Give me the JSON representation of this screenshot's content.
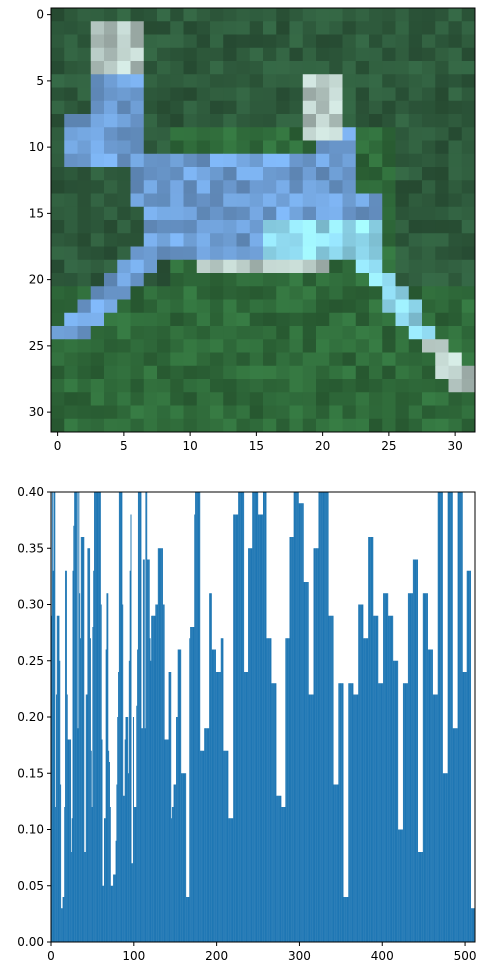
{
  "chart_data": [
    {
      "type": "heatmap",
      "description_kind": "image",
      "xlim": [
        -0.5,
        31.5
      ],
      "ylim": [
        31.5,
        -0.5
      ],
      "xticks": [
        0,
        5,
        10,
        15,
        20,
        25,
        30
      ],
      "yticks": [
        0,
        5,
        10,
        15,
        20,
        25,
        30
      ],
      "grid": false,
      "colors": {
        "background": "#2e5a3c",
        "field": "#2f6a3a",
        "subject": "#6f9fd6",
        "subject_light": "#8fd8ee",
        "subject_pale": "#b7c9c4"
      }
    },
    {
      "type": "bar",
      "xlim": [
        0,
        512
      ],
      "ylim": [
        0,
        0.4
      ],
      "xticks": [
        0,
        100,
        200,
        300,
        400,
        500
      ],
      "yticks": [
        0.0,
        0.05,
        0.1,
        0.15,
        0.2,
        0.25,
        0.3,
        0.35,
        0.4
      ],
      "ytick_labels": [
        "0.00",
        "0.05",
        "0.10",
        "0.15",
        "0.20",
        "0.25",
        "0.30",
        "0.35",
        "0.40"
      ],
      "grid": false,
      "color": "#1f77b4",
      "bar_width": 1,
      "values": [
        0.29,
        0.4,
        0.33,
        0.4,
        0.4,
        0.12,
        0.22,
        0.29,
        0.29,
        0.29,
        0.25,
        0.14,
        0.03,
        0.03,
        0.04,
        0.04,
        0.12,
        0.33,
        0.33,
        0.22,
        0.18,
        0.18,
        0.18,
        0.18,
        0.08,
        0.11,
        0.33,
        0.37,
        0.4,
        0.4,
        0.4,
        0.4,
        0.19,
        0.4,
        0.31,
        0.27,
        0.36,
        0.36,
        0.36,
        0.36,
        0.08,
        0.08,
        0.22,
        0.22,
        0.35,
        0.35,
        0.35,
        0.27,
        0.17,
        0.12,
        0.28,
        0.33,
        0.4,
        0.4,
        0.4,
        0.4,
        0.4,
        0.4,
        0.4,
        0.4,
        0.3,
        0.18,
        0.05,
        0.05,
        0.11,
        0.11,
        0.26,
        0.31,
        0.31,
        0.17,
        0.16,
        0.12,
        0.05,
        0.05,
        0.05,
        0.06,
        0.06,
        0.06,
        0.09,
        0.14,
        0.2,
        0.24,
        0.4,
        0.4,
        0.4,
        0.4,
        0.3,
        0.13,
        0.13,
        0.18,
        0.2,
        0.2,
        0.2,
        0.15,
        0.25,
        0.33,
        0.38,
        0.07,
        0.07,
        0.2,
        0.12,
        0.12,
        0.12,
        0.21,
        0.26,
        0.4,
        0.4,
        0.4,
        0.4,
        0.19,
        0.19,
        0.34,
        0.34,
        0.19,
        0.4,
        0.4,
        0.34,
        0.34,
        0.34,
        0.27,
        0.25,
        0.29,
        0.29,
        0.29,
        0.29,
        0.29,
        0.3,
        0.3,
        0.3,
        0.35,
        0.35,
        0.35,
        0.35,
        0.35,
        0.35,
        0.3,
        0.3,
        0.18,
        0.18,
        0.18,
        0.18,
        0.18,
        0.24,
        0.24,
        0.24,
        0.11,
        0.12,
        0.12,
        0.14,
        0.14,
        0.14,
        0.2,
        0.2,
        0.26,
        0.26,
        0.26,
        0.26,
        0.15,
        0.15,
        0.15,
        0.15,
        0.15,
        0.15,
        0.04,
        0.04,
        0.04,
        0.04,
        0.27,
        0.28,
        0.28,
        0.28,
        0.28,
        0.28,
        0.38,
        0.4,
        0.4,
        0.4,
        0.4,
        0.4,
        0.4,
        0.17,
        0.17,
        0.17,
        0.17,
        0.17,
        0.19,
        0.19,
        0.19,
        0.19,
        0.19,
        0.19,
        0.31,
        0.31,
        0.31,
        0.26,
        0.26,
        0.26,
        0.26,
        0.26,
        0.24,
        0.24,
        0.24,
        0.24,
        0.24,
        0.24,
        0.27,
        0.27,
        0.27,
        0.17,
        0.17,
        0.17,
        0.17,
        0.17,
        0.17,
        0.11,
        0.11,
        0.11,
        0.11,
        0.11,
        0.11,
        0.38,
        0.38,
        0.38,
        0.38,
        0.38,
        0.38,
        0.4,
        0.4,
        0.4,
        0.4,
        0.4,
        0.4,
        0.4,
        0.24,
        0.24,
        0.24,
        0.24,
        0.24,
        0.35,
        0.35,
        0.35,
        0.35,
        0.35,
        0.4,
        0.4,
        0.4,
        0.4,
        0.4,
        0.4,
        0.4,
        0.38,
        0.38,
        0.38,
        0.38,
        0.38,
        0.38,
        0.4,
        0.4,
        0.4,
        0.4,
        0.27,
        0.27,
        0.27,
        0.27,
        0.27,
        0.27,
        0.23,
        0.23,
        0.23,
        0.23,
        0.23,
        0.23,
        0.13,
        0.13,
        0.13,
        0.13,
        0.13,
        0.13,
        0.12,
        0.12,
        0.12,
        0.12,
        0.12,
        0.27,
        0.27,
        0.27,
        0.27,
        0.27,
        0.36,
        0.36,
        0.36,
        0.36,
        0.36,
        0.4,
        0.4,
        0.4,
        0.4,
        0.4,
        0.4,
        0.39,
        0.39,
        0.39,
        0.39,
        0.39,
        0.39,
        0.32,
        0.32,
        0.32,
        0.32,
        0.32,
        0.32,
        0.22,
        0.22,
        0.22,
        0.22,
        0.22,
        0.22,
        0.35,
        0.35,
        0.35,
        0.35,
        0.35,
        0.35,
        0.4,
        0.4,
        0.4,
        0.4,
        0.4,
        0.4,
        0.4,
        0.4,
        0.4,
        0.4,
        0.4,
        0.4,
        0.29,
        0.29,
        0.29,
        0.29,
        0.29,
        0.29,
        0.14,
        0.14,
        0.14,
        0.14,
        0.14,
        0.14,
        0.23,
        0.23,
        0.23,
        0.23,
        0.23,
        0.23,
        0.04,
        0.04,
        0.04,
        0.04,
        0.04,
        0.04,
        0.23,
        0.23,
        0.23,
        0.23,
        0.23,
        0.23,
        0.22,
        0.22,
        0.22,
        0.22,
        0.22,
        0.22,
        0.3,
        0.3,
        0.3,
        0.3,
        0.3,
        0.3,
        0.27,
        0.27,
        0.27,
        0.27,
        0.27,
        0.27,
        0.36,
        0.36,
        0.36,
        0.36,
        0.36,
        0.36,
        0.29,
        0.29,
        0.29,
        0.29,
        0.29,
        0.29,
        0.23,
        0.23,
        0.23,
        0.23,
        0.23,
        0.23,
        0.31,
        0.31,
        0.31,
        0.31,
        0.31,
        0.31,
        0.29,
        0.29,
        0.29,
        0.29,
        0.29,
        0.29,
        0.25,
        0.25,
        0.25,
        0.25,
        0.25,
        0.25,
        0.1,
        0.1,
        0.1,
        0.1,
        0.1,
        0.1,
        0.23,
        0.23,
        0.23,
        0.23,
        0.23,
        0.23,
        0.31,
        0.31,
        0.31,
        0.31,
        0.31,
        0.31,
        0.34,
        0.34,
        0.34,
        0.34,
        0.34,
        0.34,
        0.08,
        0.08,
        0.08,
        0.08,
        0.08,
        0.08,
        0.31,
        0.31,
        0.31,
        0.31,
        0.31,
        0.31,
        0.26,
        0.26,
        0.26,
        0.26,
        0.26,
        0.26,
        0.22,
        0.22,
        0.22,
        0.22,
        0.22,
        0.22,
        0.4,
        0.4,
        0.4,
        0.4,
        0.4,
        0.4,
        0.15,
        0.15,
        0.15,
        0.15,
        0.15,
        0.15,
        0.4,
        0.4,
        0.4,
        0.4,
        0.4,
        0.4,
        0.19,
        0.19,
        0.19,
        0.19,
        0.19,
        0.19,
        0.4,
        0.4,
        0.4,
        0.4,
        0.4,
        0.4,
        0.24,
        0.24,
        0.24,
        0.24,
        0.24,
        0.33,
        0.33,
        0.33,
        0.33,
        0.33,
        0.03,
        0.03,
        0.03,
        0.03,
        0.03
      ]
    }
  ]
}
